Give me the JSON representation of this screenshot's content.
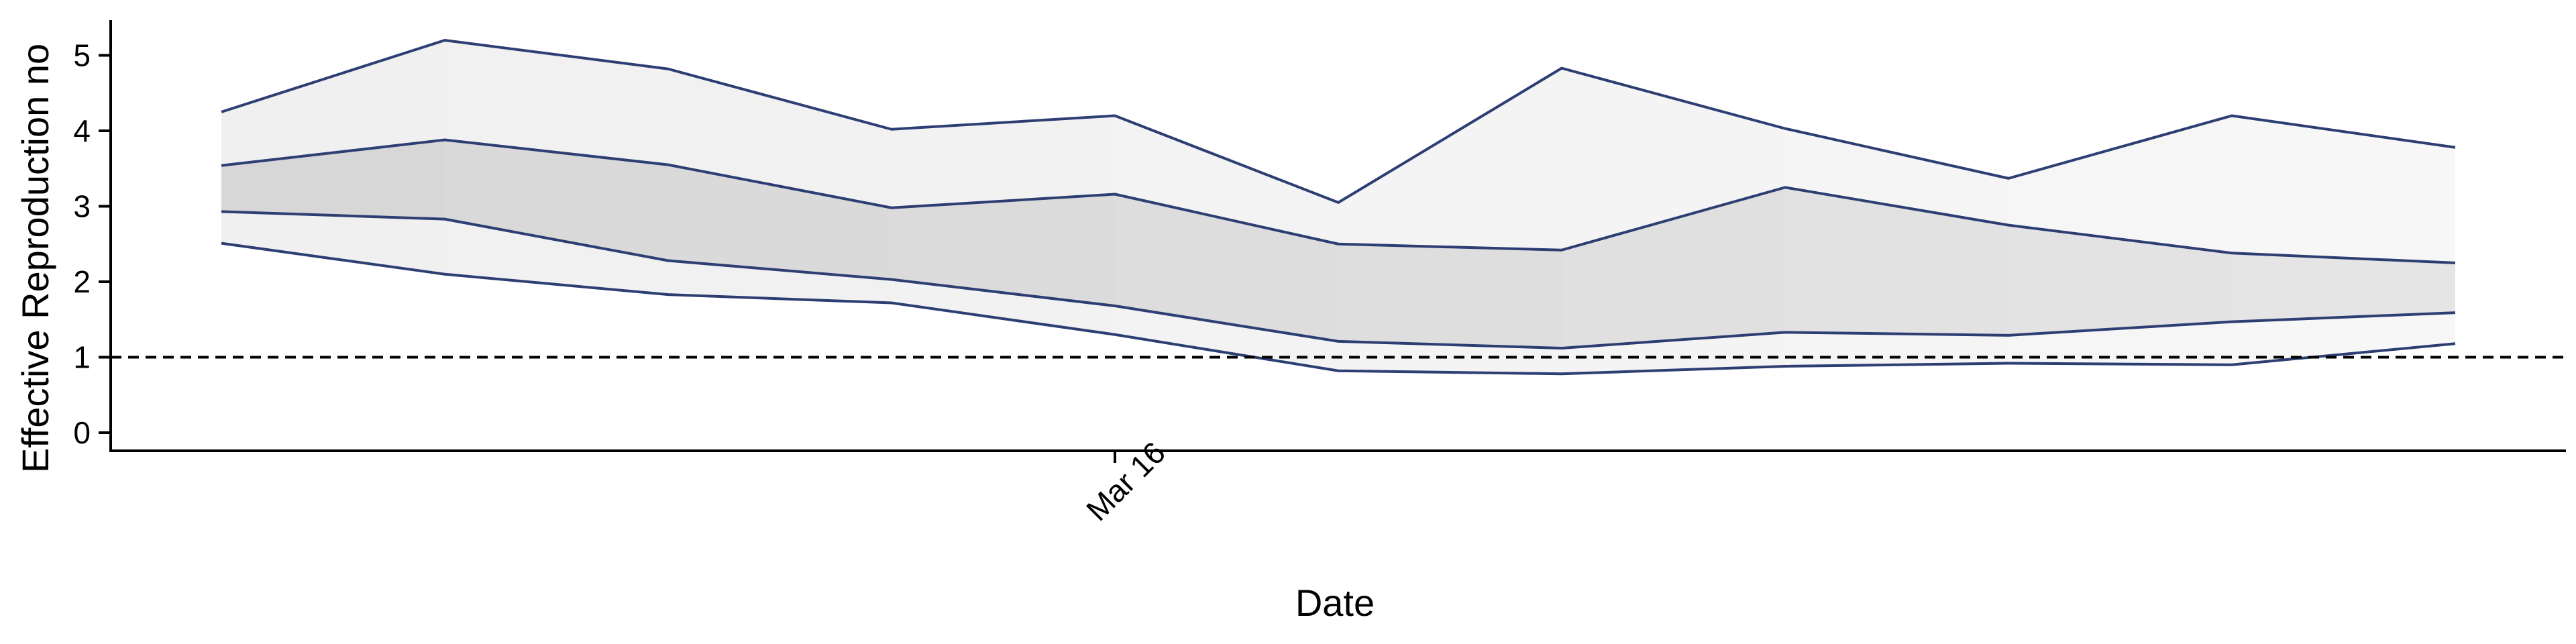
{
  "chart_data": {
    "type": "area",
    "title": "",
    "xlabel": "Date",
    "ylabel": "Effective Reproduction no",
    "x_tick_labels": [
      "Mar 16"
    ],
    "x_tick_index": 4,
    "y_ticks": [
      0,
      1,
      2,
      3,
      4,
      5
    ],
    "ylim": [
      -0.25,
      5.5
    ],
    "reference_line": {
      "y": 1,
      "style": "dashed"
    },
    "grid": false,
    "legend": "none",
    "colors": {
      "line": "#2d3e73",
      "outer_band": "#f0f0f0",
      "inner_band": "#d7d7d7"
    },
    "band_opacity_fade": true,
    "series": [
      {
        "values": [
          4.25,
          5.2,
          4.82,
          4.02,
          4.2,
          3.05,
          4.83,
          4.03,
          3.37,
          4.2,
          3.78
        ]
      },
      {
        "values": [
          3.54,
          3.88,
          3.55,
          2.98,
          3.16,
          2.5,
          2.42,
          3.25,
          2.75,
          2.38,
          2.25
        ]
      },
      {
        "values": [
          2.93,
          2.83,
          2.28,
          2.03,
          1.68,
          1.21,
          1.12,
          1.33,
          1.29,
          1.47,
          1.59
        ]
      },
      {
        "values": [
          2.51,
          2.1,
          1.83,
          1.72,
          1.3,
          0.82,
          0.78,
          0.88,
          0.92,
          0.9,
          1.18
        ]
      }
    ]
  }
}
